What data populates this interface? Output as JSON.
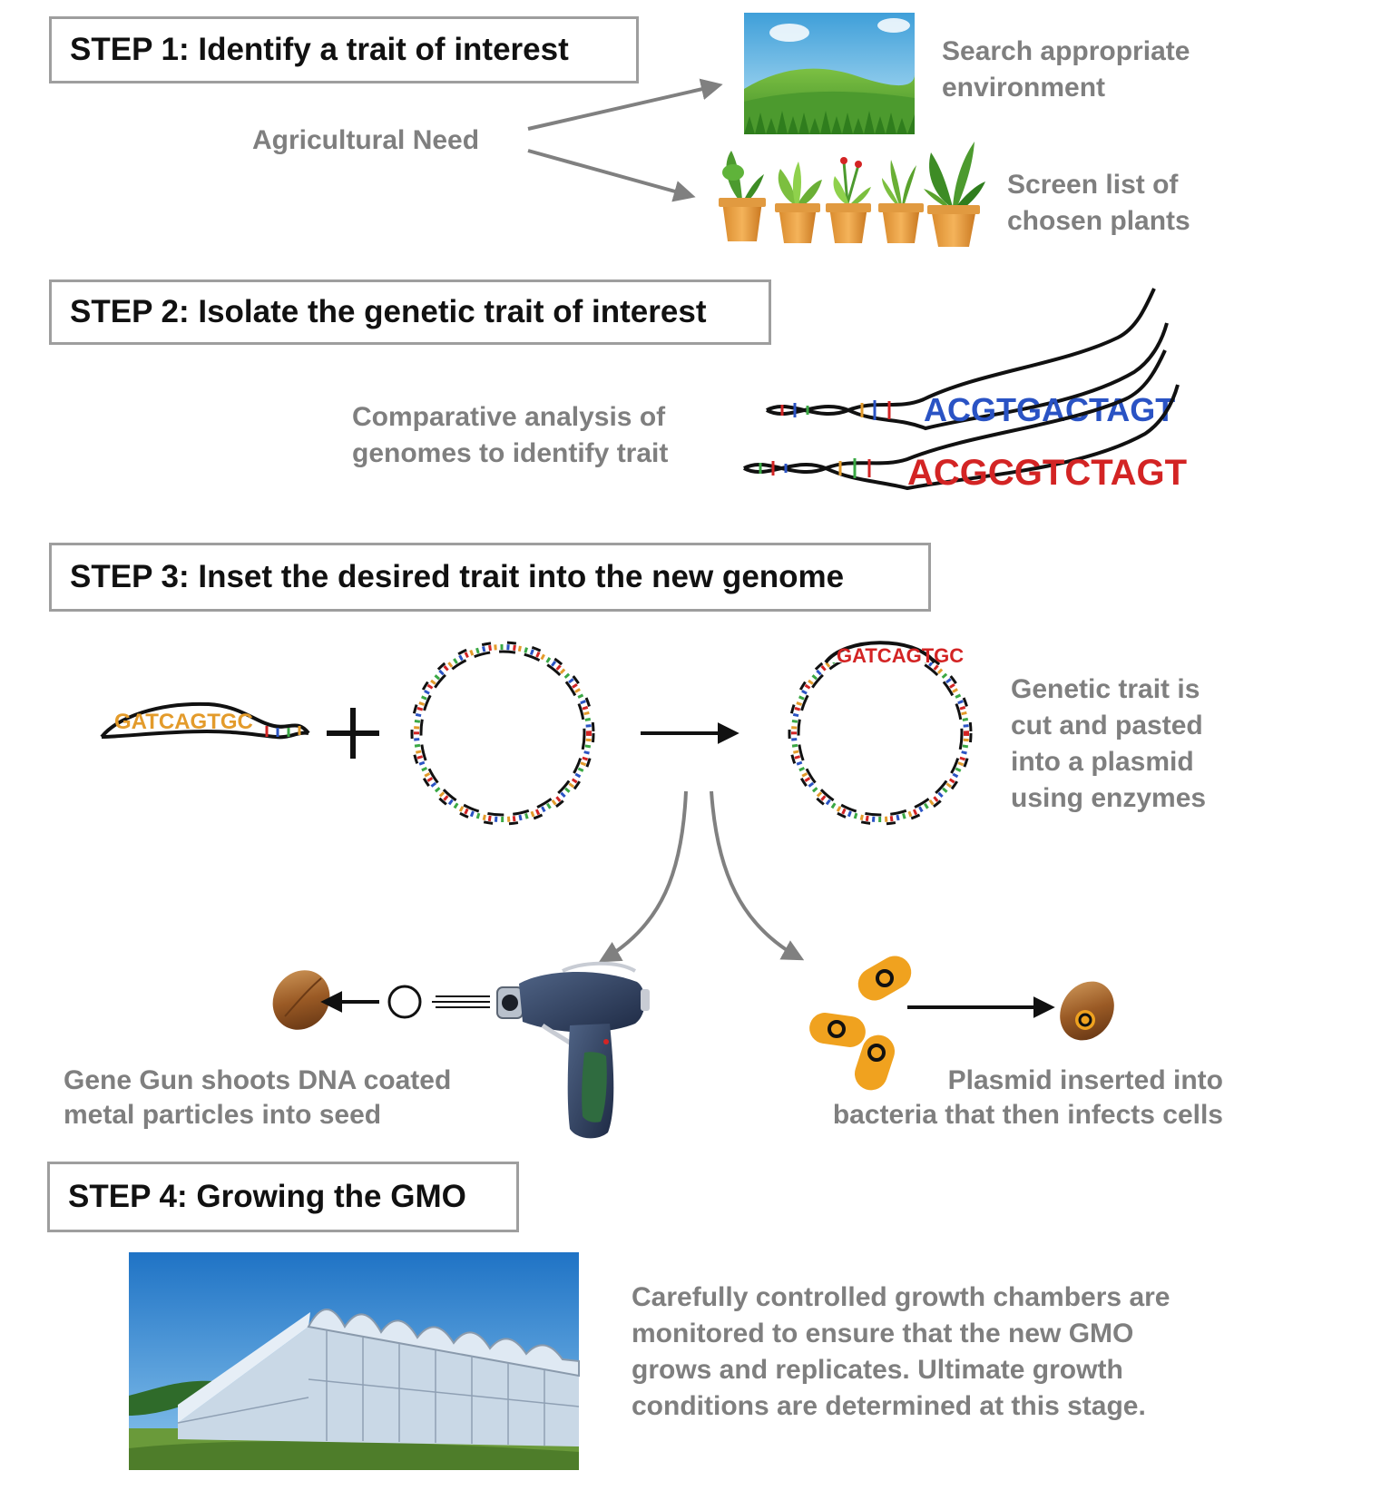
{
  "step1": {
    "title": "STEP 1: Identify a trait of interest",
    "source_label": "Agricultural Need",
    "branch_environment": [
      "Search appropriate",
      "environment"
    ],
    "branch_plants": [
      "Screen list of",
      "chosen plants"
    ]
  },
  "step2": {
    "title": "STEP 2: Isolate the genetic trait of interest",
    "description": [
      "Comparative analysis of",
      "genomes to identify trait"
    ],
    "sequence_top": "ACGTGACTAGT",
    "sequence_bottom": "ACGCGTCTAGT"
  },
  "step3": {
    "title": "STEP 3: Inset the desired trait into the new genome",
    "fragment_sequence": "GATCAGTGC",
    "plasmid_insert_sequence": "GATCAGTGC",
    "plasmid_description": [
      "Genetic trait is",
      "cut and pasted",
      "into a plasmid",
      "using enzymes"
    ],
    "gene_gun_description": [
      "Gene Gun shoots DNA coated",
      "metal particles into seed"
    ],
    "bacteria_description": [
      "Plasmid inserted into",
      "bacteria that then infects cells"
    ]
  },
  "step4": {
    "title": "STEP 4: Growing the GMO",
    "description": [
      "Carefully controlled growth chambers are",
      "monitored to ensure that the new GMO",
      "grows and replicates. Ultimate growth",
      "conditions are determined at this stage."
    ]
  },
  "colors": {
    "box_border": "#9e9e9e",
    "label_gray": "#7f7f7f",
    "base_a": "#e39b2b",
    "base_c": "#2a53c4",
    "base_g": "#d32424",
    "base_t": "#3aa844",
    "bacteria": "#f0a21f"
  }
}
